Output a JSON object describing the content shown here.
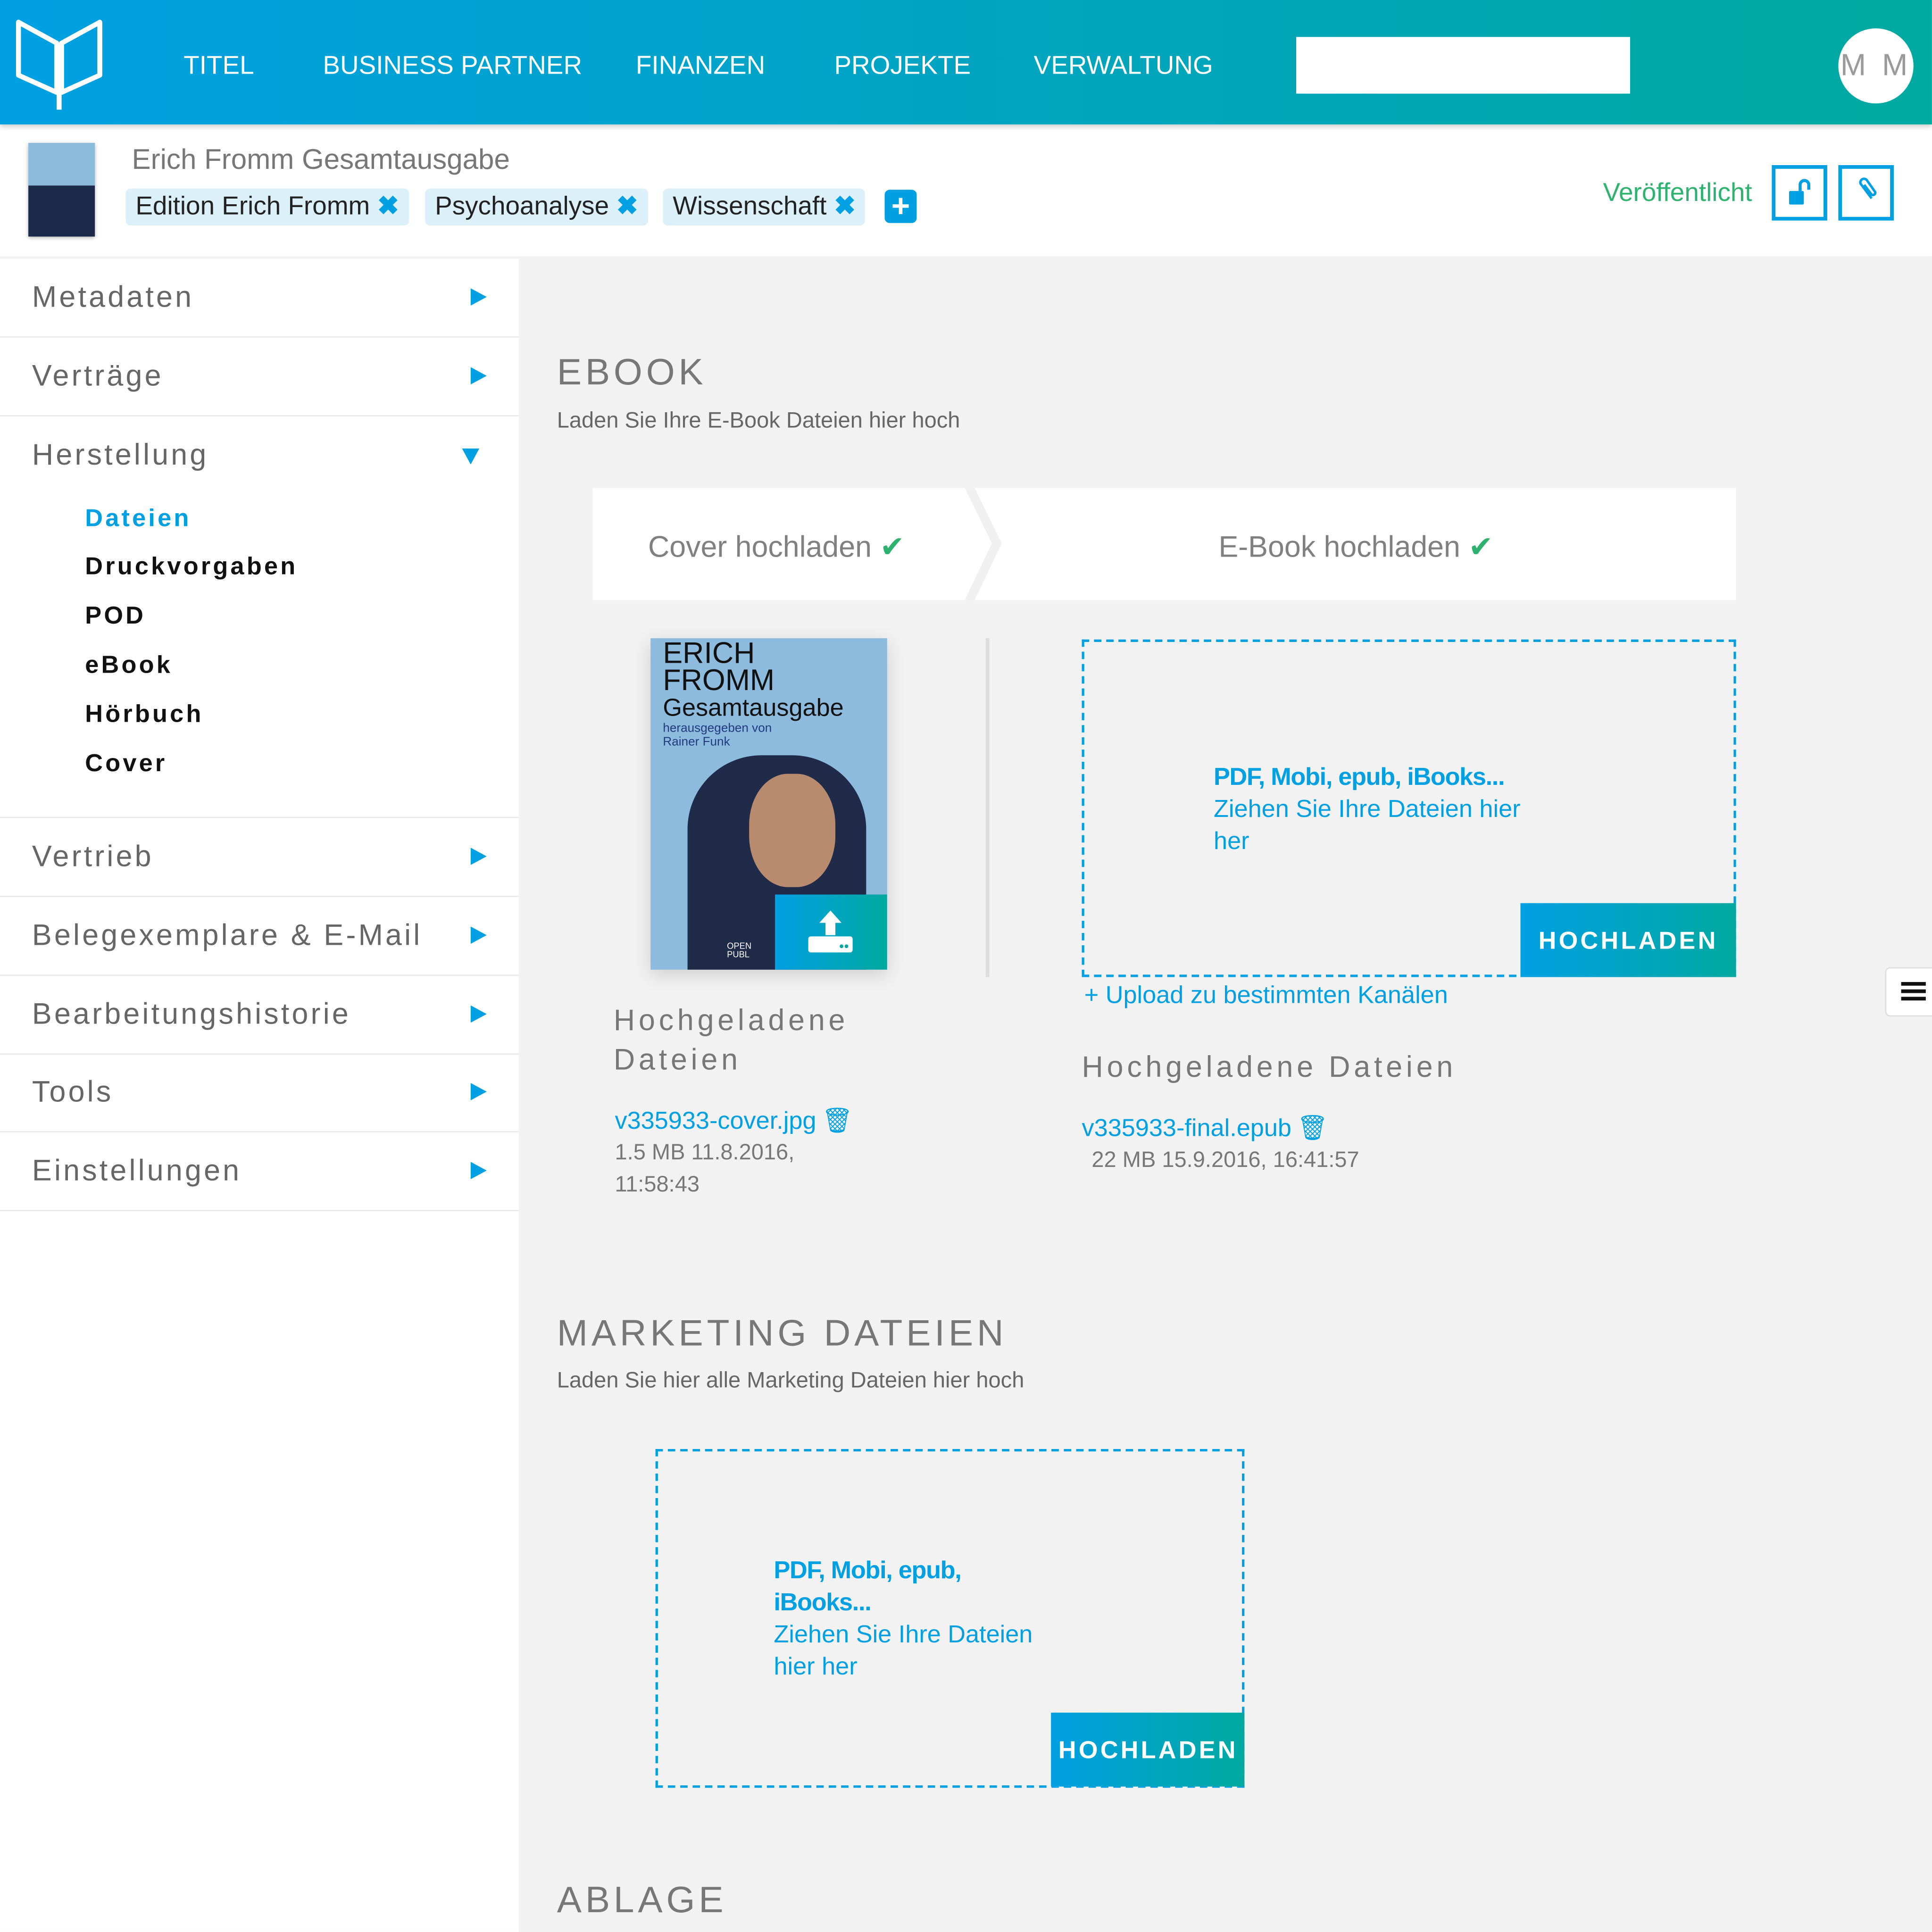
{
  "header": {
    "nav": [
      "TITEL",
      "BUSINESS PARTNER",
      "FINANZEN",
      "PROJEKTE",
      "VERWALTUNG"
    ],
    "search_value": "",
    "avatar": "M M",
    "logo": "open-book-logo"
  },
  "title": {
    "name": "Erich Fromm Gesamtausgabe",
    "tags": [
      "Edition Erich Fromm",
      "Psychoanalyse",
      "Wissenschaft"
    ],
    "status": "Veröffentlicht",
    "status_color": "#2db36f"
  },
  "sidebar": {
    "items": [
      "Metadaten",
      "Verträge",
      "Herstellung"
    ],
    "sub": [
      "Dateien",
      "Druckvorgaben",
      "POD",
      "eBook",
      "Hörbuch",
      "Cover"
    ],
    "items2": [
      "Vertrieb",
      "Belegexemplare & E-Mail",
      "Bearbeitungshistorie",
      "Tools",
      "Einstellungen"
    ]
  },
  "ebook": {
    "heading": "EBOOK",
    "subtitle": "Laden Sie Ihre E-Book Dateien hier hoch",
    "steps": [
      "Cover hochladen",
      "E-Book hochladen"
    ],
    "cover": {
      "l1": "ERICH",
      "l2": "FROMM",
      "l3": "Gesamtausgabe",
      "l4": "herausgegeben von",
      "l5": "Rainer Funk",
      "l6": "OPEN",
      "l7": "PUBL"
    },
    "drop_bold": "PDF, Mobi, epub, iBooks...",
    "drop_text": "Ziehen Sie Ihre Dateien hier her",
    "upload": "HOCHLADEN",
    "channels": "+ Upload zu bestimmten Kanälen",
    "uploaded_label": "Hochgeladene Dateien",
    "cover_file": {
      "name": "v335933-cover.jpg",
      "meta": "1.5 MB  11.8.2016, 11:58:43"
    },
    "ebook_file": {
      "name": "v335933-final.epub",
      "meta": "22 MB  15.9.2016, 16:41:57"
    }
  },
  "marketing": {
    "heading": "MARKETING DATEIEN",
    "subtitle": "Laden Sie hier alle Marketing Dateien hier hoch",
    "drop_bold": "PDF, Mobi, epub, iBooks...",
    "drop_text": "Ziehen Sie Ihre Dateien hier her",
    "upload": "HOCHLADEN"
  },
  "ablage": {
    "heading": "ABLAGE"
  },
  "colors": {
    "accent": "#00a0e3",
    "teal": "#00a9a0",
    "success": "#2db36f"
  }
}
